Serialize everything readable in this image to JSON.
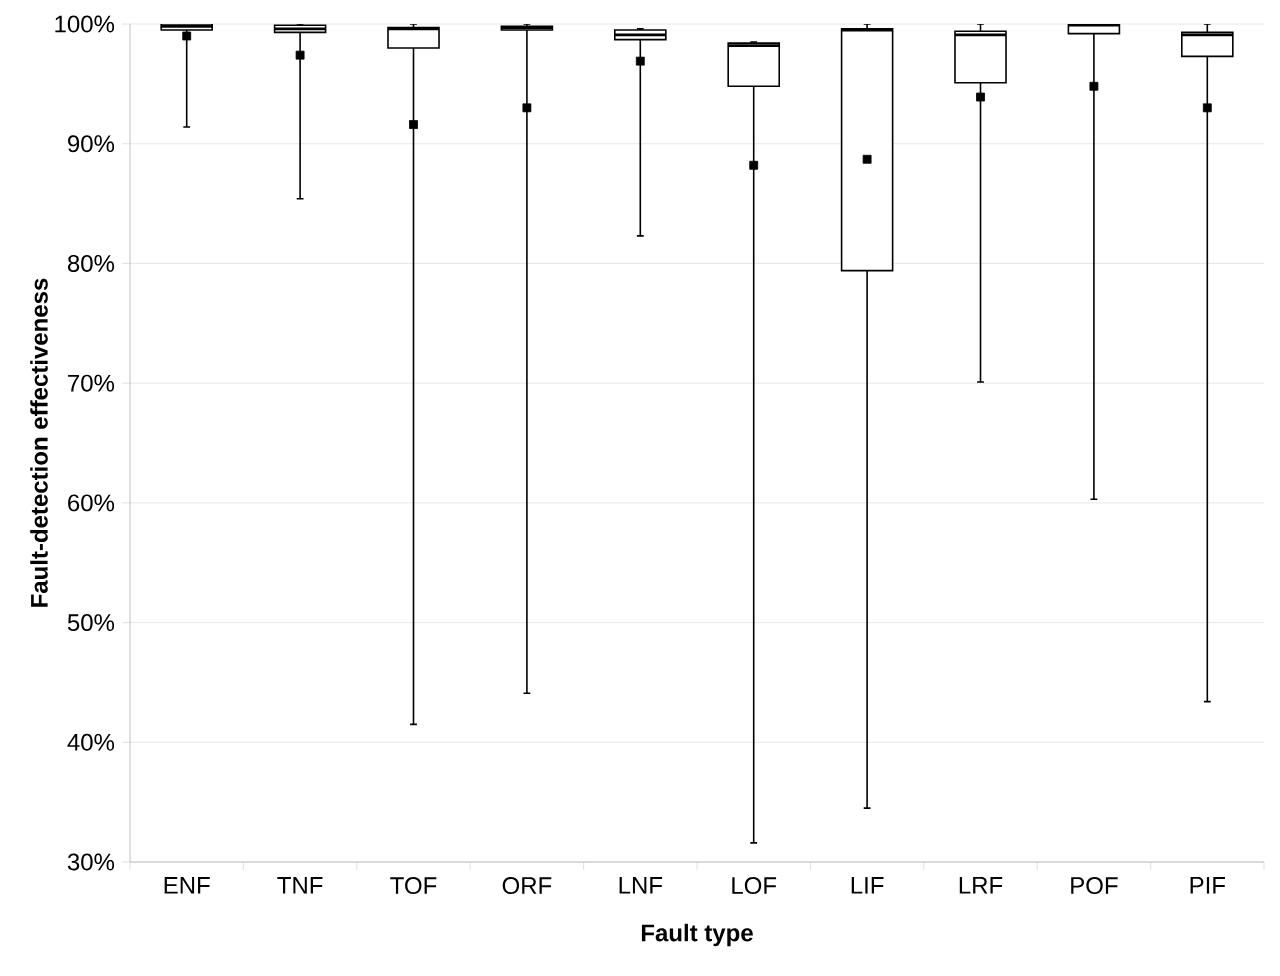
{
  "chart_data": {
    "type": "box",
    "xlabel": "Fault type",
    "ylabel": "Fault-detection effectiveness",
    "categories": [
      "ENF",
      "TNF",
      "TOF",
      "ORF",
      "LNF",
      "LOF",
      "LIF",
      "LRF",
      "POF",
      "PIF"
    ],
    "boxes": [
      {
        "low": 91.4,
        "q1": 99.5,
        "median": 99.8,
        "q3": 100,
        "high": 100,
        "mean": 99.0
      },
      {
        "low": 85.4,
        "q1": 99.3,
        "median": 99.6,
        "q3": 99.9,
        "high": 100,
        "mean": 97.4
      },
      {
        "low": 41.5,
        "q1": 98.0,
        "median": 99.6,
        "q3": 99.7,
        "high": 100,
        "mean": 91.6
      },
      {
        "low": 44.1,
        "q1": 99.5,
        "median": 99.7,
        "q3": 99.8,
        "high": 100,
        "mean": 93.0
      },
      {
        "low": 82.3,
        "q1": 98.7,
        "median": 99.1,
        "q3": 99.5,
        "high": 99.6,
        "mean": 96.9
      },
      {
        "low": 31.6,
        "q1": 94.8,
        "median": 98.2,
        "q3": 98.4,
        "high": 98.5,
        "mean": 88.2
      },
      {
        "low": 34.5,
        "q1": 79.4,
        "median": 99.5,
        "q3": 99.6,
        "high": 100,
        "mean": 88.7
      },
      {
        "low": 70.1,
        "q1": 95.1,
        "median": 99.1,
        "q3": 99.4,
        "high": 100,
        "mean": 93.9
      },
      {
        "low": 60.3,
        "q1": 99.2,
        "median": 99.9,
        "q3": 100,
        "high": 100,
        "mean": 94.8
      },
      {
        "low": 43.4,
        "q1": 97.3,
        "median": 99.1,
        "q3": 99.3,
        "high": 100,
        "mean": 93.0
      }
    ],
    "marker": "square",
    "grid": "y",
    "ylim": [
      30,
      100
    ],
    "yticks": [
      {
        "value": 30,
        "label": "30%"
      },
      {
        "value": 40,
        "label": "40%"
      },
      {
        "value": 50,
        "label": "50%"
      },
      {
        "value": 60,
        "label": "60%"
      },
      {
        "value": 70,
        "label": "70%"
      },
      {
        "value": 80,
        "label": "80%"
      },
      {
        "value": 90,
        "label": "90%"
      },
      {
        "value": 100,
        "label": "100%"
      }
    ]
  }
}
